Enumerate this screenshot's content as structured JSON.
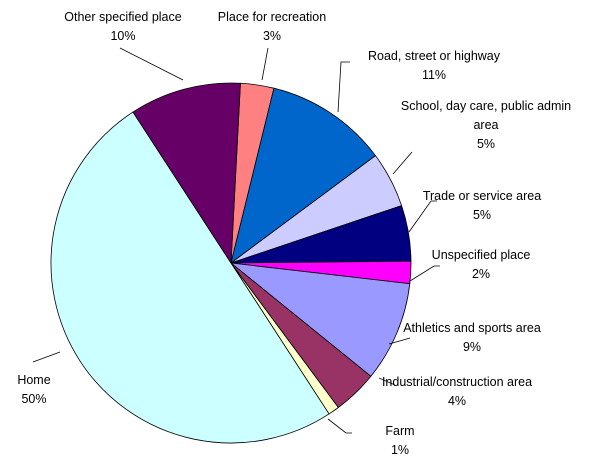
{
  "chart_data": {
    "type": "pie",
    "categories": [
      "Place for recreation",
      "Road, street or highway",
      "School, day care, public admin area",
      "Trade or service area",
      "Unspecified place",
      "Athletics and sports area",
      "Industrial/construction area",
      "Farm",
      "Home",
      "Other specified place"
    ],
    "values": [
      3,
      11,
      5,
      5,
      2,
      9,
      4,
      1,
      50,
      10
    ],
    "value_labels": [
      "3%",
      "11%",
      "5%",
      "5%",
      "2%",
      "9%",
      "4%",
      "1%",
      "50%",
      "10%"
    ],
    "colors": [
      "#ff8080",
      "#0066cc",
      "#ccccff",
      "#000080",
      "#ff00ff",
      "#9999ff",
      "#993366",
      "#ffffcc",
      "#ccffff",
      "#660066"
    ]
  }
}
